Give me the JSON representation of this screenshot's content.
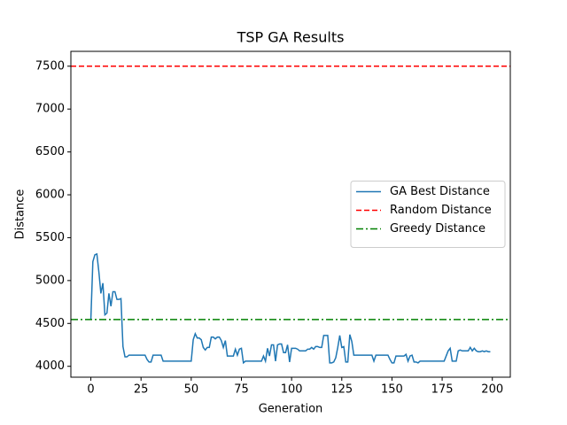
{
  "chart_data": {
    "type": "line",
    "title": "TSP GA Results",
    "xlabel": "Generation",
    "ylabel": "Distance",
    "xlim": [
      -9.95,
      208.95
    ],
    "ylim": [
      3873,
      7673
    ],
    "xticks": [
      0,
      25,
      50,
      75,
      100,
      125,
      150,
      175,
      200
    ],
    "yticks": [
      4000,
      4500,
      5000,
      5500,
      6000,
      6500,
      7000,
      7500
    ],
    "legend": "center right",
    "x": [
      0,
      1,
      2,
      3,
      4,
      5,
      6,
      7,
      8,
      9,
      10,
      11,
      12,
      13,
      14,
      15,
      16,
      17,
      18,
      19,
      20,
      21,
      22,
      23,
      24,
      25,
      26,
      27,
      28,
      29,
      30,
      31,
      32,
      33,
      34,
      35,
      36,
      37,
      38,
      39,
      40,
      41,
      42,
      43,
      44,
      45,
      46,
      47,
      48,
      49,
      50,
      51,
      52,
      53,
      54,
      55,
      56,
      57,
      58,
      59,
      60,
      61,
      62,
      63,
      64,
      65,
      66,
      67,
      68,
      69,
      70,
      71,
      72,
      73,
      74,
      75,
      76,
      77,
      78,
      79,
      80,
      81,
      82,
      83,
      84,
      85,
      86,
      87,
      88,
      89,
      90,
      91,
      92,
      93,
      94,
      95,
      96,
      97,
      98,
      99,
      100,
      101,
      102,
      103,
      104,
      105,
      106,
      107,
      108,
      109,
      110,
      111,
      112,
      113,
      114,
      115,
      116,
      117,
      118,
      119,
      120,
      121,
      122,
      123,
      124,
      125,
      126,
      127,
      128,
      129,
      130,
      131,
      132,
      133,
      134,
      135,
      136,
      137,
      138,
      139,
      140,
      141,
      142,
      143,
      144,
      145,
      146,
      147,
      148,
      149,
      150,
      151,
      152,
      153,
      154,
      155,
      156,
      157,
      158,
      159,
      160,
      161,
      162,
      163,
      164,
      165,
      166,
      167,
      168,
      169,
      170,
      171,
      172,
      173,
      174,
      175,
      176,
      177,
      178,
      179,
      180,
      181,
      182,
      183,
      184,
      185,
      186,
      187,
      188,
      189,
      190,
      191,
      192,
      193,
      194,
      195,
      196,
      197,
      198,
      199
    ],
    "series": [
      {
        "name": "GA Best Distance",
        "color": "#1f77b4",
        "linestyle": "solid",
        "values": [
          4546,
          5220,
          5300,
          5310,
          5100,
          4850,
          4970,
          4600,
          4620,
          4850,
          4700,
          4870,
          4870,
          4780,
          4780,
          4790,
          4230,
          4110,
          4110,
          4130,
          4130,
          4130,
          4130,
          4130,
          4130,
          4130,
          4130,
          4130,
          4080,
          4050,
          4050,
          4130,
          4130,
          4130,
          4130,
          4130,
          4060,
          4060,
          4060,
          4060,
          4060,
          4060,
          4060,
          4060,
          4060,
          4060,
          4060,
          4060,
          4060,
          4060,
          4060,
          4310,
          4380,
          4330,
          4330,
          4310,
          4220,
          4190,
          4220,
          4220,
          4340,
          4340,
          4320,
          4340,
          4340,
          4300,
          4220,
          4300,
          4120,
          4120,
          4120,
          4120,
          4200,
          4130,
          4200,
          4210,
          4040,
          4060,
          4060,
          4060,
          4060,
          4060,
          4060,
          4060,
          4060,
          4060,
          4120,
          4060,
          4210,
          4120,
          4250,
          4250,
          4060,
          4250,
          4260,
          4260,
          4160,
          4160,
          4250,
          4050,
          4210,
          4210,
          4210,
          4200,
          4180,
          4180,
          4180,
          4180,
          4200,
          4200,
          4220,
          4200,
          4230,
          4230,
          4220,
          4220,
          4360,
          4360,
          4360,
          4040,
          4040,
          4050,
          4100,
          4220,
          4360,
          4220,
          4230,
          4050,
          4050,
          4370,
          4290,
          4130,
          4130,
          4130,
          4130,
          4130,
          4130,
          4130,
          4130,
          4130,
          4130,
          4060,
          4130,
          4130,
          4130,
          4130,
          4130,
          4130,
          4130,
          4080,
          4040,
          4040,
          4120,
          4120,
          4120,
          4120,
          4120,
          4140,
          4060,
          4120,
          4130,
          4050,
          4050,
          4040,
          4060,
          4060,
          4060,
          4060,
          4060,
          4060,
          4060,
          4060,
          4060,
          4060,
          4060,
          4060,
          4060,
          4120,
          4180,
          4210,
          4060,
          4060,
          4060,
          4180,
          4190,
          4180,
          4180,
          4180,
          4180,
          4220,
          4180,
          4210,
          4180,
          4170,
          4170,
          4180,
          4170,
          4180,
          4170,
          4170
        ]
      },
      {
        "name": "Random Distance",
        "color": "#ff0000",
        "linestyle": "dashed",
        "value": 7500
      },
      {
        "name": "Greedy Distance",
        "color": "#008000",
        "linestyle": "dashdot",
        "value": 4546
      }
    ]
  }
}
